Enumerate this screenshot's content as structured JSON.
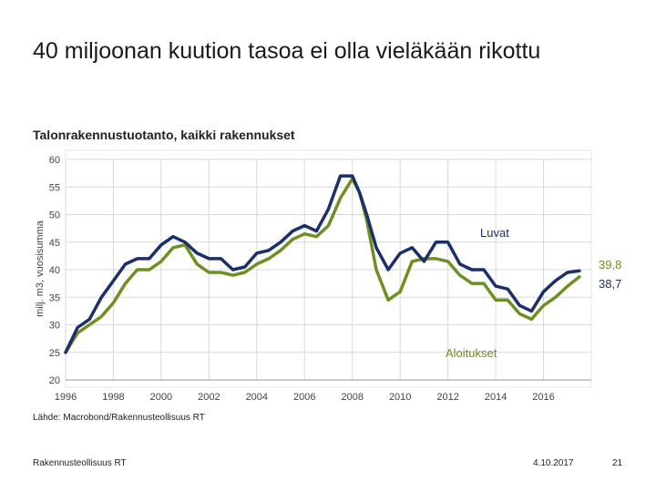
{
  "slide": {
    "title": "40 miljoonan kuution tasoa ei olla vieläkään rikottu",
    "footer_left": "Rakennusteollisuus RT",
    "footer_date": "4.10.2017",
    "footer_page": "21"
  },
  "colors": {
    "luvat": "#1b2f6b",
    "aloitukset": "#6f8f22",
    "grid": "#d9d9d9",
    "axis_text": "#444444"
  },
  "chart_data": {
    "type": "line",
    "title": "Talonrakennustuotanto, kaikki rakennukset",
    "ylabel": "milj. m3, vuosisumma",
    "source": "Lähde: Macrobond/Rakennusteollisuus RT",
    "xlim": [
      1996,
      2018
    ],
    "ylim": [
      20,
      60
    ],
    "x_ticks": [
      "1996",
      "1998",
      "2000",
      "2002",
      "2004",
      "2006",
      "2008",
      "2010",
      "2012",
      "2014",
      "2016"
    ],
    "y_ticks": [
      "20",
      "25",
      "30",
      "35",
      "40",
      "45",
      "50",
      "55",
      "60"
    ],
    "grid": true,
    "end_labels": [
      {
        "series": "Luvat",
        "text": "39,8"
      },
      {
        "series": "Aloitukset",
        "text": "38,7"
      }
    ],
    "series": [
      {
        "name": "Luvat",
        "x": [
          1996.0,
          1996.5,
          1997.0,
          1997.5,
          1998.0,
          1998.5,
          1999.0,
          1999.5,
          2000.0,
          2000.5,
          2001.0,
          2001.5,
          2002.0,
          2002.5,
          2003.0,
          2003.5,
          2004.0,
          2004.5,
          2005.0,
          2005.5,
          2006.0,
          2006.5,
          2007.0,
          2007.5,
          2008.0,
          2008.3,
          2008.6,
          2009.0,
          2009.5,
          2010.0,
          2010.5,
          2011.0,
          2011.5,
          2012.0,
          2012.5,
          2013.0,
          2013.5,
          2014.0,
          2014.5,
          2015.0,
          2015.5,
          2016.0,
          2016.5,
          2017.0,
          2017.5
        ],
        "values": [
          25.0,
          29.5,
          31.0,
          35.0,
          38.0,
          41.0,
          42.0,
          42.0,
          44.5,
          46.0,
          45.0,
          43.0,
          42.0,
          42.0,
          40.0,
          40.5,
          43.0,
          43.5,
          45.0,
          47.0,
          48.0,
          47.0,
          51.0,
          57.0,
          57.0,
          54.0,
          50.0,
          44.0,
          40.0,
          43.0,
          44.0,
          41.5,
          45.0,
          45.0,
          41.0,
          40.0,
          40.0,
          37.0,
          36.5,
          33.5,
          32.5,
          36.0,
          38.0,
          39.5,
          39.8
        ]
      },
      {
        "name": "Aloitukset",
        "x": [
          1996.0,
          1996.5,
          1997.0,
          1997.5,
          1998.0,
          1998.5,
          1999.0,
          1999.5,
          2000.0,
          2000.5,
          2001.0,
          2001.5,
          2002.0,
          2002.5,
          2003.0,
          2003.5,
          2004.0,
          2004.5,
          2005.0,
          2005.5,
          2006.0,
          2006.5,
          2007.0,
          2007.5,
          2008.0,
          2008.3,
          2008.6,
          2009.0,
          2009.5,
          2010.0,
          2010.5,
          2011.0,
          2011.5,
          2012.0,
          2012.5,
          2013.0,
          2013.5,
          2014.0,
          2014.5,
          2015.0,
          2015.5,
          2016.0,
          2016.5,
          2017.0,
          2017.5
        ],
        "values": [
          25.0,
          28.5,
          30.0,
          31.5,
          34.0,
          37.5,
          40.0,
          40.0,
          41.5,
          44.0,
          44.5,
          41.0,
          39.5,
          39.5,
          39.0,
          39.5,
          41.0,
          42.0,
          43.5,
          45.5,
          46.5,
          46.0,
          48.0,
          53.0,
          56.5,
          54.0,
          49.0,
          40.0,
          34.5,
          36.0,
          41.5,
          42.0,
          42.0,
          41.5,
          39.0,
          37.5,
          37.5,
          34.5,
          34.5,
          32.0,
          31.0,
          33.5,
          35.0,
          37.0,
          38.7
        ]
      }
    ]
  }
}
